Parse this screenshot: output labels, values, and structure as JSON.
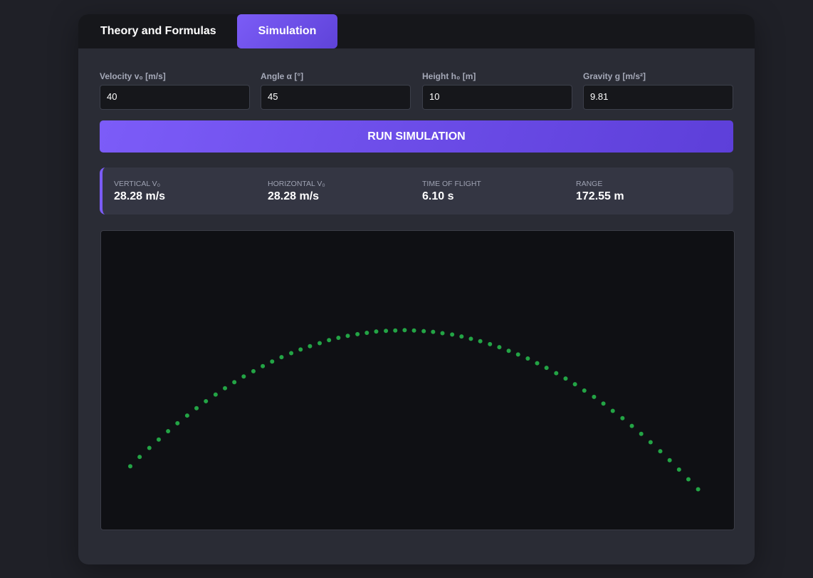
{
  "tabs": [
    "Theory and Formulas",
    "Simulation"
  ],
  "inputs": [
    {
      "label": "Velocity v₀ [m/s]",
      "value": "40"
    },
    {
      "label": "Angle α [°]",
      "value": "45"
    },
    {
      "label": "Height h₀ [m]",
      "value": "10"
    },
    {
      "label": "Gravity g [m/s²]",
      "value": "9.81"
    }
  ],
  "button": "RUN SIMULATION",
  "results": [
    {
      "label": "VERTICAL V₀",
      "value": "28.28 m/s"
    },
    {
      "label": "HORIZONTAL V₀",
      "value": "28.28 m/s"
    },
    {
      "label": "TIME OF FLIGHT",
      "value": "6.10 s"
    },
    {
      "label": "RANGE",
      "value": "172.55 m"
    }
  ],
  "trajectory": {
    "x": [
      0,
      2.8,
      5.7,
      8.5,
      11.3,
      14.1,
      17.0,
      19.8,
      22.6,
      25.5,
      28.3,
      31.1,
      33.9,
      36.8,
      39.6,
      42.4,
      45.2,
      48.1,
      50.9,
      53.7,
      56.6,
      59.4,
      62.2,
      65.0,
      67.9,
      70.7,
      73.5,
      76.4,
      79.2,
      82.0,
      84.8,
      87.7,
      90.5,
      93.3,
      96.2,
      99.0,
      101.8,
      104.6,
      107.5,
      110.3,
      113.1,
      115.9,
      118.8,
      121.6,
      124.4,
      127.3,
      130.1,
      132.9,
      135.7,
      138.6,
      141.4,
      144.2,
      147.1,
      149.9,
      152.7,
      155.5,
      158.4,
      161.2,
      164.0,
      166.8,
      169.7
    ],
    "y": [
      10,
      12.8,
      15.5,
      18.0,
      20.5,
      22.9,
      25.2,
      27.4,
      29.5,
      31.5,
      33.4,
      35.2,
      36.9,
      38.5,
      40.0,
      41.4,
      42.7,
      43.9,
      45.0,
      46.0,
      46.9,
      47.8,
      48.5,
      49.1,
      49.6,
      50.0,
      50.4,
      50.6,
      50.7,
      50.8,
      50.7,
      50.5,
      50.3,
      49.9,
      49.5,
      48.9,
      48.2,
      47.5,
      46.6,
      45.7,
      44.6,
      43.5,
      42.3,
      40.9,
      39.5,
      37.9,
      36.3,
      34.6,
      32.7,
      30.8,
      28.8,
      26.6,
      24.4,
      22.1,
      19.7,
      17.2,
      14.5,
      11.8,
      9.0,
      6.1,
      3.1
    ]
  }
}
